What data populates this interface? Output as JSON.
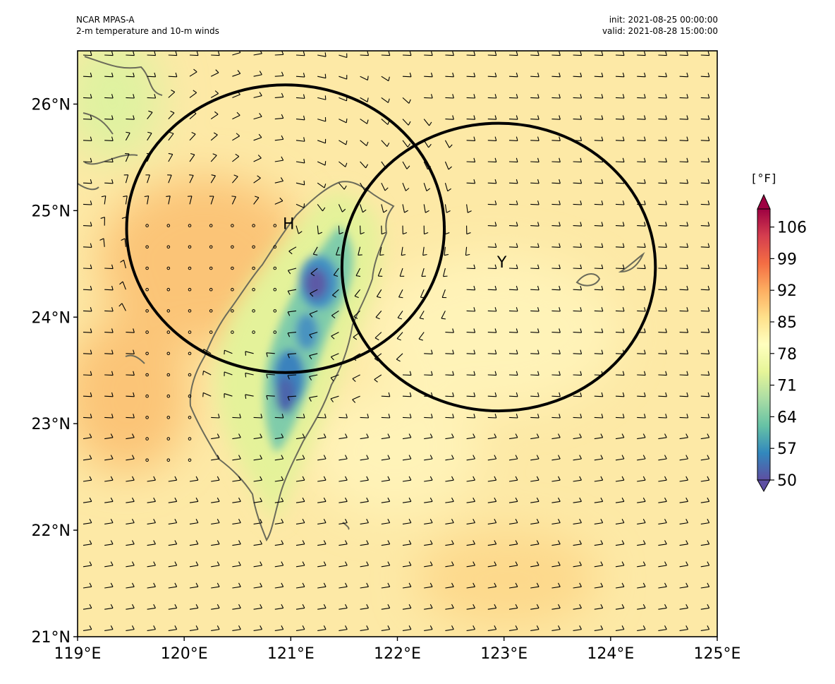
{
  "header": {
    "model": "NCAR MPAS-A",
    "field": "2-m temperature and 10-m winds",
    "init": "init: 2021-08-25 00:00:00",
    "valid": "valid: 2021-08-28 15:00:00"
  },
  "axes": {
    "lon_min": 119,
    "lon_max": 125,
    "lat_min": 21,
    "lat_max": 26.5,
    "lon_ticks": [
      {
        "value": 119,
        "label": "119°E"
      },
      {
        "value": 120,
        "label": "120°E"
      },
      {
        "value": 121,
        "label": "121°E"
      },
      {
        "value": 122,
        "label": "122°E"
      },
      {
        "value": 123,
        "label": "123°E"
      },
      {
        "value": 124,
        "label": "124°E"
      },
      {
        "value": 125,
        "label": "125°E"
      }
    ],
    "lat_ticks": [
      {
        "value": 21,
        "label": "21°N"
      },
      {
        "value": 22,
        "label": "22°N"
      },
      {
        "value": 23,
        "label": "23°N"
      },
      {
        "value": 24,
        "label": "24°N"
      },
      {
        "value": 25,
        "label": "25°N"
      },
      {
        "value": 26,
        "label": "26°N"
      }
    ]
  },
  "colorbar": {
    "unit": "[°F]",
    "min": 50,
    "max": 110,
    "ticks": [
      "50",
      "57",
      "64",
      "71",
      "78",
      "85",
      "92",
      "99",
      "106"
    ],
    "tick_values": [
      50,
      57,
      64,
      71,
      78,
      85,
      92,
      99,
      106
    ],
    "stops": [
      "#5e4fa2",
      "#3288bd",
      "#66c2a5",
      "#abdda4",
      "#e6f598",
      "#ffffbf",
      "#fee08b",
      "#fdae61",
      "#f46d43",
      "#d53e4f",
      "#9e0142"
    ]
  },
  "circles": [
    {
      "label": "H",
      "center_lon": 120.95,
      "center_lat": 24.83,
      "radius_deg_lon": 1.49,
      "radius_deg_lat": 1.35
    },
    {
      "label": "Y",
      "center_lon": 122.95,
      "center_lat": 24.47,
      "radius_deg_lon": 1.47,
      "radius_deg_lat": 1.35
    }
  ],
  "labels": [
    {
      "text": "H",
      "lon": 120.98,
      "lat": 24.88
    },
    {
      "text": "Y",
      "lon": 122.98,
      "lat": 24.52
    }
  ],
  "colors": {
    "background_field": "#fde7a2",
    "circle": "#000000",
    "coast": "#6b6b5a",
    "barb": "#000000"
  }
}
